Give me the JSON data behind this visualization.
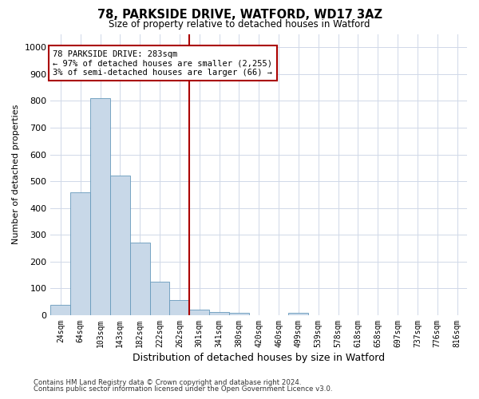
{
  "title1": "78, PARKSIDE DRIVE, WATFORD, WD17 3AZ",
  "title2": "Size of property relative to detached houses in Watford",
  "xlabel": "Distribution of detached houses by size in Watford",
  "ylabel": "Number of detached properties",
  "categories": [
    "24sqm",
    "64sqm",
    "103sqm",
    "143sqm",
    "182sqm",
    "222sqm",
    "262sqm",
    "301sqm",
    "341sqm",
    "380sqm",
    "420sqm",
    "460sqm",
    "499sqm",
    "539sqm",
    "578sqm",
    "618sqm",
    "658sqm",
    "697sqm",
    "737sqm",
    "776sqm",
    "816sqm"
  ],
  "bar_heights": [
    40,
    460,
    810,
    520,
    270,
    125,
    57,
    20,
    12,
    10,
    0,
    0,
    8,
    0,
    0,
    0,
    0,
    0,
    0,
    0,
    0
  ],
  "bar_color": "#c8d8e8",
  "bar_edge_color": "#6699bb",
  "grid_color": "#d0d8e8",
  "background_color": "#ffffff",
  "vline_color": "#aa0000",
  "annotation_text": "78 PARKSIDE DRIVE: 283sqm\n← 97% of detached houses are smaller (2,255)\n3% of semi-detached houses are larger (66) →",
  "annotation_box_color": "#ffffff",
  "annotation_box_edge_color": "#aa0000",
  "ylim": [
    0,
    1050
  ],
  "yticks": [
    0,
    100,
    200,
    300,
    400,
    500,
    600,
    700,
    800,
    900,
    1000
  ],
  "footer1": "Contains HM Land Registry data © Crown copyright and database right 2024.",
  "footer2": "Contains public sector information licensed under the Open Government Licence v3.0."
}
